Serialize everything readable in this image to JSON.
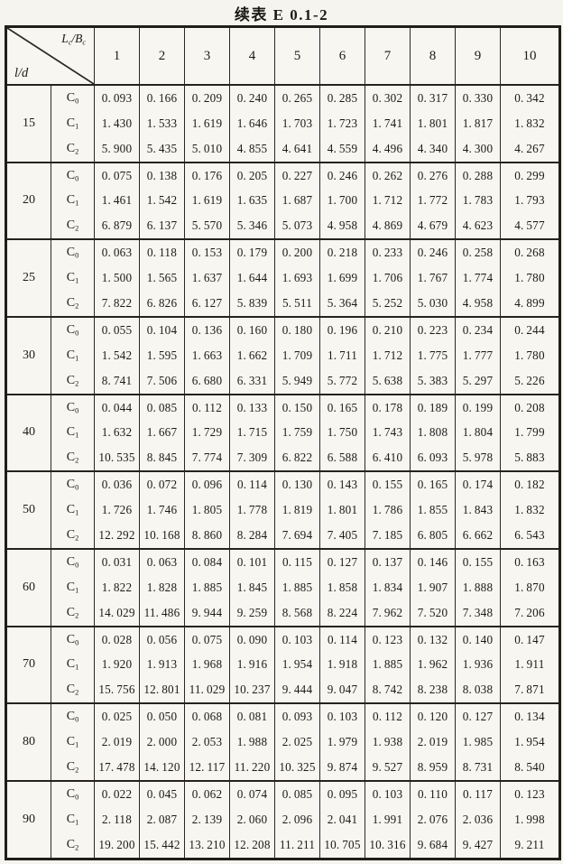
{
  "title": "续表 E 0.1-2",
  "corner": {
    "top": "L_c/B_c",
    "bottom": "l/d"
  },
  "columns": [
    "1",
    "2",
    "3",
    "4",
    "5",
    "6",
    "7",
    "8",
    "9",
    "10"
  ],
  "row_labels": [
    "C_0",
    "C_1",
    "C_2"
  ],
  "colors": {
    "ink": "#1c1a17",
    "paper": "#f5f4ef",
    "border": "#2b2823"
  },
  "chart_data": {
    "type": "table",
    "title": "续表 E 0.1-2",
    "col_axis_label": "Lc/Bc",
    "row_axis_label": "l/d",
    "categories": [
      "1",
      "2",
      "3",
      "4",
      "5",
      "6",
      "7",
      "8",
      "9",
      "10"
    ]
  },
  "groups": [
    {
      "ld": "15",
      "rows": [
        [
          "0.093",
          "0.166",
          "0.209",
          "0.240",
          "0.265",
          "0.285",
          "0.302",
          "0.317",
          "0.330",
          "0.342"
        ],
        [
          "1.430",
          "1.533",
          "1.619",
          "1.646",
          "1.703",
          "1.723",
          "1.741",
          "1.801",
          "1.817",
          "1.832"
        ],
        [
          "5.900",
          "5.435",
          "5.010",
          "4.855",
          "4.641",
          "4.559",
          "4.496",
          "4.340",
          "4.300",
          "4.267"
        ]
      ]
    },
    {
      "ld": "20",
      "rows": [
        [
          "0.075",
          "0.138",
          "0.176",
          "0.205",
          "0.227",
          "0.246",
          "0.262",
          "0.276",
          "0.288",
          "0.299"
        ],
        [
          "1.461",
          "1.542",
          "1.619",
          "1.635",
          "1.687",
          "1.700",
          "1.712",
          "1.772",
          "1.783",
          "1.793"
        ],
        [
          "6.879",
          "6.137",
          "5.570",
          "5.346",
          "5.073",
          "4.958",
          "4.869",
          "4.679",
          "4.623",
          "4.577"
        ]
      ]
    },
    {
      "ld": "25",
      "rows": [
        [
          "0.063",
          "0.118",
          "0.153",
          "0.179",
          "0.200",
          "0.218",
          "0.233",
          "0.246",
          "0.258",
          "0.268"
        ],
        [
          "1.500",
          "1.565",
          "1.637",
          "1.644",
          "1.693",
          "1.699",
          "1.706",
          "1.767",
          "1.774",
          "1.780"
        ],
        [
          "7.822",
          "6.826",
          "6.127",
          "5.839",
          "5.511",
          "5.364",
          "5.252",
          "5.030",
          "4.958",
          "4.899"
        ]
      ]
    },
    {
      "ld": "30",
      "rows": [
        [
          "0.055",
          "0.104",
          "0.136",
          "0.160",
          "0.180",
          "0.196",
          "0.210",
          "0.223",
          "0.234",
          "0.244"
        ],
        [
          "1.542",
          "1.595",
          "1.663",
          "1.662",
          "1.709",
          "1.711",
          "1.712",
          "1.775",
          "1.777",
          "1.780"
        ],
        [
          "8.741",
          "7.506",
          "6.680",
          "6.331",
          "5.949",
          "5.772",
          "5.638",
          "5.383",
          "5.297",
          "5.226"
        ]
      ]
    },
    {
      "ld": "40",
      "rows": [
        [
          "0.044",
          "0.085",
          "0.112",
          "0.133",
          "0.150",
          "0.165",
          "0.178",
          "0.189",
          "0.199",
          "0.208"
        ],
        [
          "1.632",
          "1.667",
          "1.729",
          "1.715",
          "1.759",
          "1.750",
          "1.743",
          "1.808",
          "1.804",
          "1.799"
        ],
        [
          "10.535",
          "8.845",
          "7.774",
          "7.309",
          "6.822",
          "6.588",
          "6.410",
          "6.093",
          "5.978",
          "5.883"
        ]
      ]
    },
    {
      "ld": "50",
      "rows": [
        [
          "0.036",
          "0.072",
          "0.096",
          "0.114",
          "0.130",
          "0.143",
          "0.155",
          "0.165",
          "0.174",
          "0.182"
        ],
        [
          "1.726",
          "1.746",
          "1.805",
          "1.778",
          "1.819",
          "1.801",
          "1.786",
          "1.855",
          "1.843",
          "1.832"
        ],
        [
          "12.292",
          "10.168",
          "8.860",
          "8.284",
          "7.694",
          "7.405",
          "7.185",
          "6.805",
          "6.662",
          "6.543"
        ]
      ]
    },
    {
      "ld": "60",
      "rows": [
        [
          "0.031",
          "0.063",
          "0.084",
          "0.101",
          "0.115",
          "0.127",
          "0.137",
          "0.146",
          "0.155",
          "0.163"
        ],
        [
          "1.822",
          "1.828",
          "1.885",
          "1.845",
          "1.885",
          "1.858",
          "1.834",
          "1.907",
          "1.888",
          "1.870"
        ],
        [
          "14.029",
          "11.486",
          "9.944",
          "9.259",
          "8.568",
          "8.224",
          "7.962",
          "7.520",
          "7.348",
          "7.206"
        ]
      ]
    },
    {
      "ld": "70",
      "rows": [
        [
          "0.028",
          "0.056",
          "0.075",
          "0.090",
          "0.103",
          "0.114",
          "0.123",
          "0.132",
          "0.140",
          "0.147"
        ],
        [
          "1.920",
          "1.913",
          "1.968",
          "1.916",
          "1.954",
          "1.918",
          "1.885",
          "1.962",
          "1.936",
          "1.911"
        ],
        [
          "15.756",
          "12.801",
          "11.029",
          "10.237",
          "9.444",
          "9.047",
          "8.742",
          "8.238",
          "8.038",
          "7.871"
        ]
      ]
    },
    {
      "ld": "80",
      "rows": [
        [
          "0.025",
          "0.050",
          "0.068",
          "0.081",
          "0.093",
          "0.103",
          "0.112",
          "0.120",
          "0.127",
          "0.134"
        ],
        [
          "2.019",
          "2.000",
          "2.053",
          "1.988",
          "2.025",
          "1.979",
          "1.938",
          "2.019",
          "1.985",
          "1.954"
        ],
        [
          "17.478",
          "14.120",
          "12.117",
          "11.220",
          "10.325",
          "9.874",
          "9.527",
          "8.959",
          "8.731",
          "8.540"
        ]
      ]
    },
    {
      "ld": "90",
      "rows": [
        [
          "0.022",
          "0.045",
          "0.062",
          "0.074",
          "0.085",
          "0.095",
          "0.103",
          "0.110",
          "0.117",
          "0.123"
        ],
        [
          "2.118",
          "2.087",
          "2.139",
          "2.060",
          "2.096",
          "2.041",
          "1.991",
          "2.076",
          "2.036",
          "1.998"
        ],
        [
          "19.200",
          "15.442",
          "13.210",
          "12.208",
          "11.211",
          "10.705",
          "10.316",
          "9.684",
          "9.427",
          "9.211"
        ]
      ]
    }
  ]
}
